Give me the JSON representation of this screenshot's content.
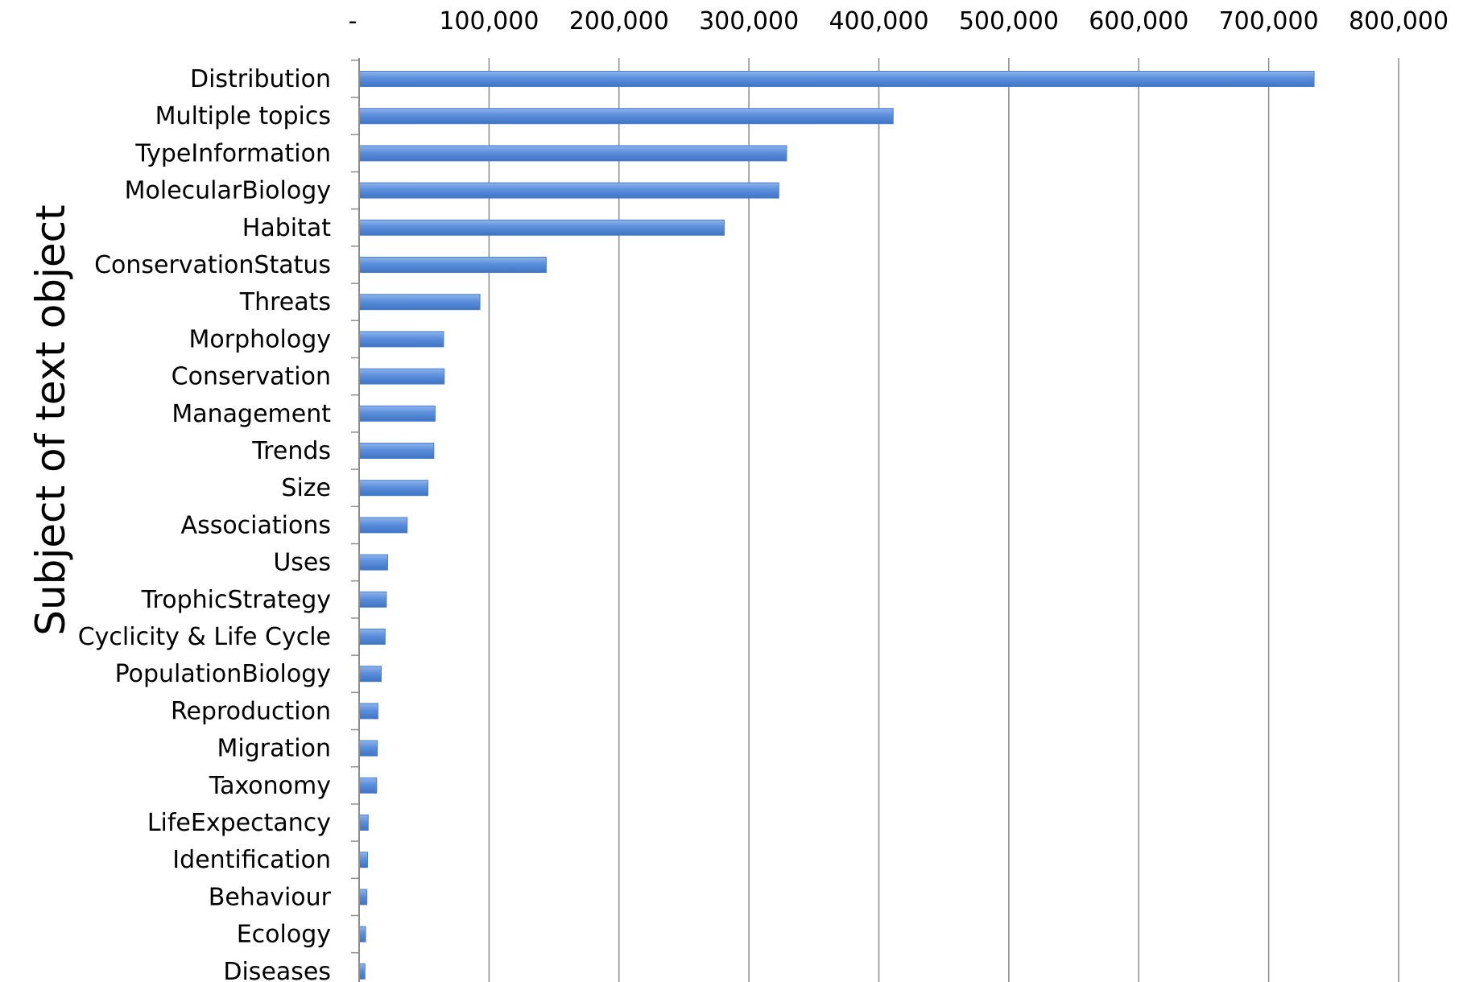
{
  "chart_data": {
    "type": "bar",
    "orientation": "horizontal",
    "ylabel": "Subject of text object",
    "x_ticks": [
      "-",
      "100,000",
      "200,000",
      "300,000",
      "400,000",
      "500,000",
      "600,000",
      "700,000",
      "800,000"
    ],
    "xlim": [
      0,
      800000
    ],
    "x_axis_position": "top",
    "grid": true,
    "bar_color": "#5b8fdc",
    "categories": [
      "Distribution",
      "Multiple topics",
      "TypeInformation",
      "MolecularBiology",
      "Habitat",
      "ConservationStatus",
      "Threats",
      "Morphology",
      "Conservation",
      "Management",
      "Trends",
      "Size",
      "Associations",
      "Uses",
      "TrophicStrategy",
      "Cyclicity & Life Cycle",
      "PopulationBiology",
      "Reproduction",
      "Migration",
      "Taxonomy",
      "LifeExpectancy",
      "Identification",
      "Behaviour",
      "Ecology",
      "Diseases"
    ],
    "values": [
      735000,
      411000,
      329000,
      323000,
      281000,
      144000,
      93000,
      65000,
      65500,
      58500,
      57500,
      53000,
      37000,
      22000,
      21000,
      20000,
      17000,
      14500,
      14000,
      13500,
      7000,
      6500,
      6000,
      5000,
      4500
    ]
  }
}
